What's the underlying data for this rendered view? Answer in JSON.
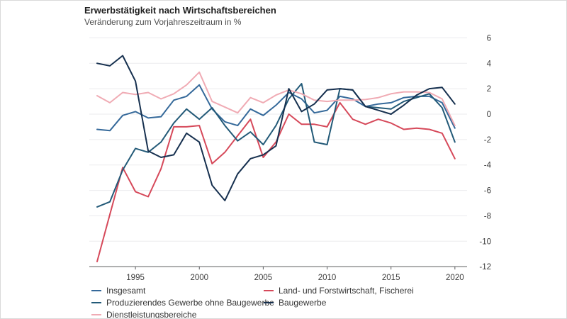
{
  "header": {
    "title": "Erwerbstätigkeit nach Wirtschaftsbereichen",
    "subtitle": "Veränderung zum Vorjahreszeitraum in %"
  },
  "chart_data": {
    "type": "line",
    "x": [
      1992,
      1993,
      1994,
      1995,
      1996,
      1997,
      1998,
      1999,
      2000,
      2001,
      2002,
      2003,
      2004,
      2005,
      2006,
      2007,
      2008,
      2009,
      2010,
      2011,
      2012,
      2013,
      2014,
      2015,
      2016,
      2017,
      2018,
      2019,
      2020
    ],
    "series": [
      {
        "name": "Insgesamt",
        "color": "#35699a",
        "values": [
          -1.2,
          -1.3,
          -0.1,
          0.2,
          -0.3,
          -0.2,
          1.1,
          1.4,
          2.3,
          0.4,
          -0.6,
          -0.9,
          0.4,
          -0.1,
          0.7,
          1.7,
          1.2,
          0.1,
          0.3,
          1.4,
          1.2,
          0.6,
          0.8,
          0.9,
          1.3,
          1.4,
          1.4,
          0.9,
          -1.1
        ]
      },
      {
        "name": "Land- und Forstwirtschaft, Fischerei",
        "color": "#d6495a",
        "values": [
          -11.6,
          -7.9,
          -4.2,
          -6.1,
          -6.5,
          -4.3,
          -1.0,
          -1.0,
          -0.9,
          -3.9,
          -3.0,
          -1.7,
          -0.4,
          -3.4,
          -2.2,
          0.0,
          -0.8,
          -0.8,
          -1.0,
          0.9,
          -0.4,
          -0.8,
          -0.4,
          -0.7,
          -1.2,
          -1.1,
          -1.2,
          -1.5,
          -3.5
        ]
      },
      {
        "name": "Produzierendes Gewerbe ohne Baugewerbe",
        "color": "#235a78",
        "values": [
          -7.3,
          -6.9,
          -4.4,
          -2.7,
          -3.0,
          -2.2,
          -0.7,
          0.4,
          -0.4,
          0.5,
          -0.9,
          -2.1,
          -1.4,
          -2.4,
          -0.9,
          1.2,
          2.4,
          -2.2,
          -2.4,
          2.0,
          1.9,
          0.6,
          0.5,
          0.4,
          1.0,
          1.3,
          1.6,
          0.5,
          -2.2
        ]
      },
      {
        "name": "Baugewerbe",
        "color": "#16304f",
        "values": [
          4.0,
          3.8,
          4.6,
          2.6,
          -2.9,
          -3.4,
          -3.2,
          -1.5,
          -2.2,
          -5.6,
          -6.8,
          -4.7,
          -3.5,
          -3.2,
          -2.5,
          2.0,
          0.2,
          0.8,
          1.9,
          2.0,
          1.9,
          0.6,
          0.3,
          0.0,
          0.7,
          1.5,
          2.0,
          2.1,
          0.8
        ]
      },
      {
        "name": "Dienstleistungsbereiche",
        "color": "#f0abb4",
        "values": [
          1.45,
          0.9,
          1.7,
          1.55,
          1.7,
          1.2,
          1.6,
          2.3,
          3.3,
          1.0,
          0.55,
          0.1,
          1.3,
          0.9,
          1.5,
          1.9,
          1.6,
          1.1,
          1.0,
          1.1,
          1.1,
          1.15,
          1.3,
          1.6,
          1.75,
          1.75,
          1.7,
          1.2,
          -0.9
        ]
      }
    ],
    "ylim": [
      -12,
      6
    ],
    "ytick_step": 2,
    "xticks": [
      1995,
      2000,
      2005,
      2010,
      2015,
      2020
    ],
    "grid": true,
    "legend_position": "bottom",
    "draw_order": [
      1,
      0,
      2,
      4,
      3
    ],
    "legend_order": [
      0,
      2,
      4,
      1,
      3
    ]
  },
  "colors": {
    "grid": "#ebebee",
    "axis": "#5a5b5e",
    "label": "#3c3c3c"
  }
}
